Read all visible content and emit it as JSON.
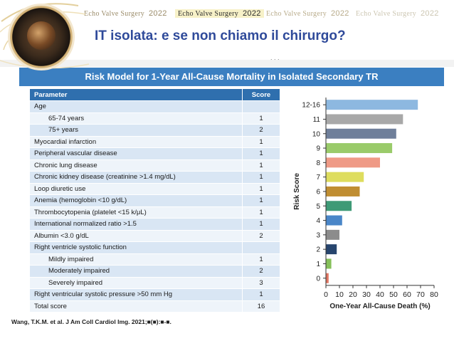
{
  "banner": {
    "logos": [
      {
        "brand": "Echo Valve Surgery",
        "year": "2022"
      },
      {
        "brand": "Echo Valve Surgery",
        "year": "2022"
      },
      {
        "brand": "Echo Valve Surgery",
        "year": "2022"
      },
      {
        "brand": "Echo Valve Surgery",
        "year": "2022"
      }
    ],
    "accent_color": "#2f4a9a"
  },
  "slide": {
    "title": "IT isolata: e se non chiamo il chirurgo?",
    "dots": ". , ."
  },
  "figure": {
    "header": "Risk Model for 1-Year All-Cause Mortality in Isolated Secondary TR",
    "table": {
      "columns": [
        "Parameter",
        "Score"
      ],
      "rows": [
        {
          "param": "Age",
          "score": "",
          "indent": false
        },
        {
          "param": "65-74 years",
          "score": "1",
          "indent": true
        },
        {
          "param": "75+ years",
          "score": "2",
          "indent": true
        },
        {
          "param": "Myocardial infarction",
          "score": "1",
          "indent": false
        },
        {
          "param": "Peripheral vascular disease",
          "score": "1",
          "indent": false
        },
        {
          "param": "Chronic lung disease",
          "score": "1",
          "indent": false
        },
        {
          "param": "Chronic kidney disease (creatinine >1.4 mg/dL)",
          "score": "1",
          "indent": false
        },
        {
          "param": "Loop diuretic use",
          "score": "1",
          "indent": false
        },
        {
          "param": "Anemia (hemoglobin <10 g/dL)",
          "score": "1",
          "indent": false
        },
        {
          "param": "Thrombocytopenia (platelet <15 k/μL)",
          "score": "1",
          "indent": false
        },
        {
          "param": "International normalized ratio >1.5",
          "score": "1",
          "indent": false
        },
        {
          "param": "Albumin <3.0 g/dL",
          "score": "2",
          "indent": false
        },
        {
          "param": "Right ventricle systolic function",
          "score": "",
          "indent": false
        },
        {
          "param": "Mildly impaired",
          "score": "1",
          "indent": true
        },
        {
          "param": "Moderately impaired",
          "score": "2",
          "indent": true
        },
        {
          "param": "Severely impaired",
          "score": "3",
          "indent": true
        },
        {
          "param": "Right ventricular systolic pressure >50 mm Hg",
          "score": "1",
          "indent": false
        },
        {
          "param": "Total score",
          "score": "16",
          "indent": false
        }
      ]
    },
    "citation": "Wang, T.K.M. et al. J Am Coll Cardiol Img. 2021;■(■):■-■."
  },
  "chart_data": {
    "type": "bar",
    "orientation": "horizontal",
    "title": "",
    "xlabel": "One-Year All-Cause Death (%)",
    "ylabel": "Risk Score",
    "xlim": [
      0,
      80
    ],
    "xticks": [
      0,
      10,
      20,
      30,
      40,
      50,
      60,
      70,
      80
    ],
    "categories": [
      "12-16",
      "11",
      "10",
      "9",
      "8",
      "7",
      "6",
      "5",
      "4",
      "3",
      "2",
      "1",
      "0"
    ],
    "values": [
      68,
      57,
      52,
      49,
      40,
      28,
      25,
      19,
      12,
      10,
      8,
      4,
      2
    ],
    "colors": [
      "#8db8e0",
      "#a8a8a8",
      "#6f7f9a",
      "#9acb6a",
      "#ef9a86",
      "#dedd5e",
      "#c08e32",
      "#3e9a76",
      "#4a86c8",
      "#8c8c8c",
      "#27456e",
      "#86c05a",
      "#e07662"
    ],
    "grid": false,
    "legend": "none"
  }
}
